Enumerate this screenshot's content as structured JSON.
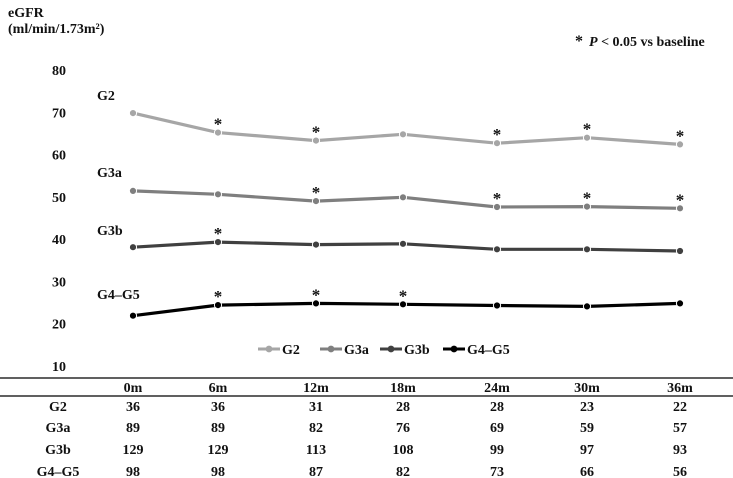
{
  "chart_data": {
    "type": "line",
    "ylabel_line1": "eGFR",
    "ylabel_line2": "(ml/min/1.73m²)",
    "note_star": "*",
    "note_p": "P",
    "note_rest": " < 0.05 vs baseline",
    "categories": [
      "0m",
      "6m",
      "12m",
      "18m",
      "24m",
      "30m",
      "36m"
    ],
    "yticks": [
      10,
      20,
      30,
      40,
      50,
      60,
      70,
      80
    ],
    "ylim": [
      10,
      80
    ],
    "grid": false,
    "legend_position": "bottom-center",
    "series": [
      {
        "name": "G2",
        "color": "#a6a6a6",
        "values": [
          69.8,
          65.2,
          63.3,
          64.8,
          62.7,
          64.0,
          62.4
        ],
        "significant": [
          false,
          true,
          true,
          false,
          true,
          true,
          true
        ]
      },
      {
        "name": "G3a",
        "color": "#7f7f7f",
        "values": [
          51.4,
          50.6,
          49.0,
          49.9,
          47.6,
          47.7,
          47.3
        ],
        "significant": [
          false,
          false,
          true,
          false,
          true,
          true,
          true
        ]
      },
      {
        "name": "G3b",
        "color": "#404040",
        "values": [
          38.1,
          39.3,
          38.7,
          38.9,
          37.6,
          37.6,
          37.2
        ],
        "significant": [
          false,
          true,
          false,
          false,
          false,
          false,
          false
        ]
      },
      {
        "name": "G4–G5",
        "color": "#000000",
        "values": [
          21.9,
          24.4,
          24.8,
          24.6,
          24.3,
          24.1,
          24.8
        ],
        "significant": [
          false,
          true,
          true,
          true,
          false,
          false,
          false
        ]
      }
    ],
    "series_labels": [
      "G2",
      "G3a",
      "G3b",
      "G4–G5"
    ],
    "legend": [
      "G2",
      "G3a",
      "G3b",
      "G4–G5"
    ],
    "table": {
      "rows": [
        {
          "label": "G2",
          "values": [
            "36",
            "36",
            "31",
            "28",
            "28",
            "23",
            "22"
          ]
        },
        {
          "label": "G3a",
          "values": [
            "89",
            "89",
            "82",
            "76",
            "69",
            "59",
            "57"
          ]
        },
        {
          "label": "G3b",
          "values": [
            "129",
            "129",
            "113",
            "108",
            "99",
            "97",
            "93"
          ]
        },
        {
          "label": "G4–G5",
          "values": [
            "98",
            "98",
            "87",
            "82",
            "73",
            "66",
            "56"
          ]
        }
      ]
    }
  }
}
